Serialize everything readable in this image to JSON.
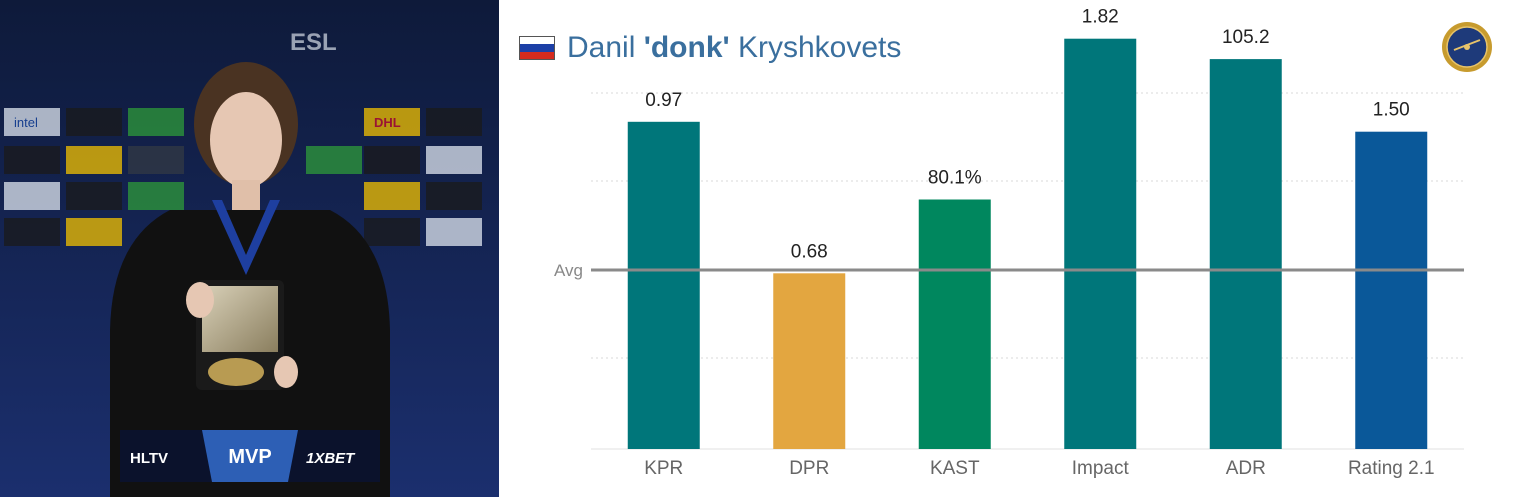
{
  "photo": {
    "overlay": {
      "left_logo": "HLTV",
      "center_label": "MVP",
      "right_logo": "1XBET"
    },
    "backdrop": {
      "sponsor_logos": [
        "intel",
        "DHL"
      ],
      "event_logo": "ESL"
    }
  },
  "header": {
    "title_first": "Danil ",
    "title_nick": "'donk'",
    "title_last": " Kryshkovets",
    "flag": [
      "#ffffff",
      "#1c3fa6",
      "#d52b1e"
    ]
  },
  "chart_data": {
    "type": "bar",
    "categories": [
      "KPR",
      "DPR",
      "KAST",
      "Impact",
      "ADR",
      "Rating 2.1"
    ],
    "series": [
      {
        "values": [
          "0.97",
          "0.68",
          "80.1%",
          "1.82",
          "105.2",
          "1.50"
        ],
        "relative_to_avg": [
          0.494,
          -0.011,
          0.235,
          0.771,
          0.703,
          0.461
        ],
        "colors": [
          "#00767a",
          "#e3a640",
          "#00875e",
          "#00767a",
          "#00767a",
          "#0a5899"
        ]
      }
    ],
    "reference_line": {
      "label": "Avg",
      "value": 0
    },
    "ylim": [
      -1,
      1
    ],
    "grid": true,
    "title": "",
    "xlabel": "",
    "ylabel": ""
  }
}
